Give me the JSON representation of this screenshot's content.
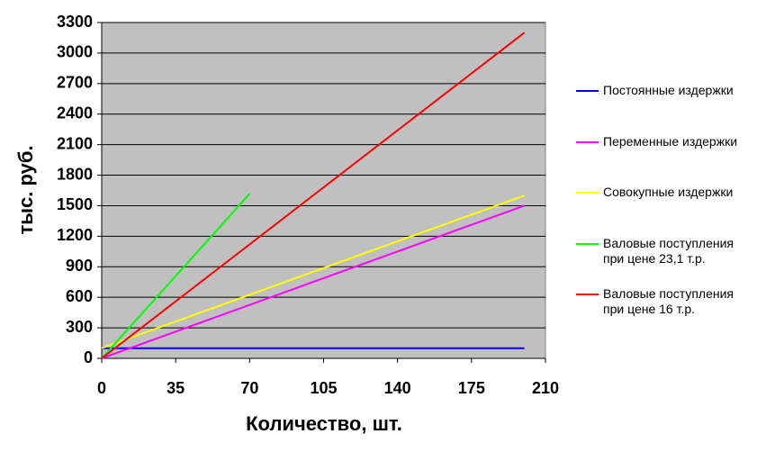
{
  "chart_data": {
    "type": "line",
    "xlabel": "Количество, шт.",
    "ylabel": "тыс. руб.",
    "xlim": [
      0,
      210
    ],
    "xticks": [
      0,
      35,
      70,
      105,
      140,
      175,
      210
    ],
    "ylim": [
      0,
      3300
    ],
    "yticks": [
      0,
      300,
      600,
      900,
      1200,
      1500,
      1800,
      2100,
      2400,
      2700,
      3000,
      3300
    ],
    "grid": true,
    "background": "#c0c0c0",
    "legend": "right",
    "series": [
      {
        "name": "Постоянные издержки",
        "color": "#0000ff",
        "x": [
          0,
          200
        ],
        "values": [
          100,
          100
        ]
      },
      {
        "name": "Переменные издержки",
        "color": "#ff00ff",
        "x": [
          0,
          200
        ],
        "values": [
          0,
          1500
        ]
      },
      {
        "name": "Совокупные издержки",
        "color": "#ffff00",
        "x": [
          0,
          200
        ],
        "values": [
          100,
          1600
        ]
      },
      {
        "name": "Валовые поступления при цене 23,1 т.р.",
        "color": "#00ff00",
        "x": [
          0,
          70
        ],
        "values": [
          0,
          1617
        ]
      },
      {
        "name": "Валовые поступления при цене 16 т.р.",
        "color": "#ff0000",
        "x": [
          0,
          200
        ],
        "values": [
          0,
          3200
        ]
      }
    ]
  }
}
